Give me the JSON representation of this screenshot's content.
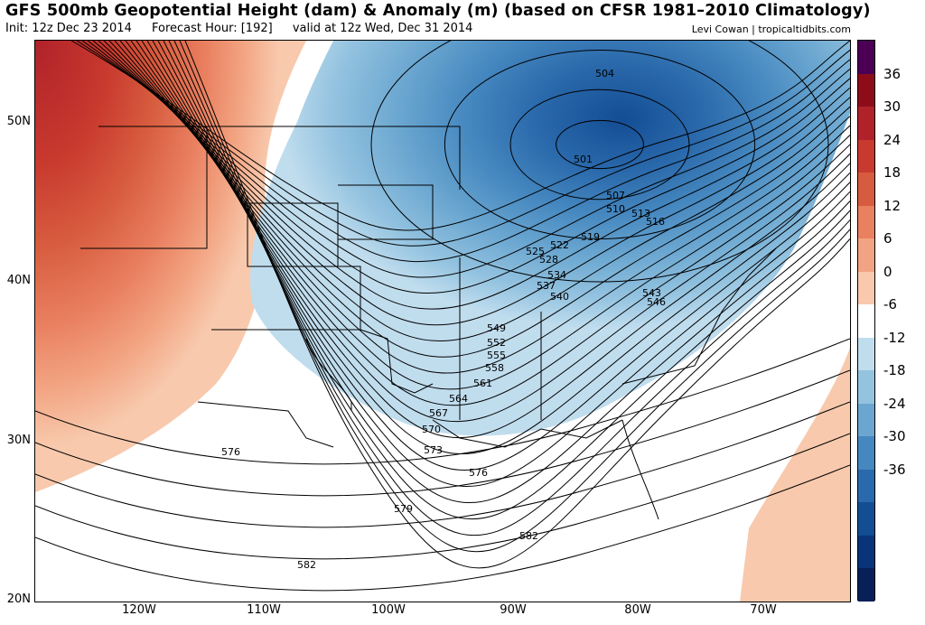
{
  "header": {
    "title": "GFS 500mb Geopotential Height (dam) & Anomaly (m) (based on CFSR 1981–2010 Climatology)",
    "init": "Init: 12z Dec 23 2014",
    "forecast_hour": "Forecast Hour: [192]",
    "valid": "valid at 12z Wed, Dec 31 2014",
    "credit": "Levi Cowan | tropicaltidbits.com"
  },
  "axes": {
    "lat_labels": [
      "50N",
      "40N",
      "30N",
      "20N"
    ],
    "lon_labels": [
      "120W",
      "110W",
      "100W",
      "90W",
      "80W",
      "70W"
    ]
  },
  "colorbar": {
    "labels": [
      "36",
      "30",
      "24",
      "18",
      "12",
      "6",
      "0",
      "-6",
      "-12",
      "-18",
      "-24",
      "-30",
      "-36"
    ],
    "colors": [
      "#4b0056",
      "#8c0d19",
      "#b0222a",
      "#c8392e",
      "#d75b3e",
      "#e98060",
      "#f2a381",
      "#f8c9ad",
      "#ffffff",
      "#c0ddee",
      "#94c3e0",
      "#6aa6d0",
      "#4587bf",
      "#2a69ab",
      "#134d94",
      "#0a3479",
      "#081f57"
    ]
  },
  "contours": {
    "labels": [
      "504",
      "501",
      "507",
      "510",
      "513",
      "516",
      "519",
      "522",
      "525",
      "528",
      "534",
      "537",
      "540",
      "543",
      "546",
      "549",
      "552",
      "555",
      "558",
      "561",
      "564",
      "567",
      "570",
      "573",
      "576",
      "576",
      "579",
      "582",
      "582"
    ]
  }
}
